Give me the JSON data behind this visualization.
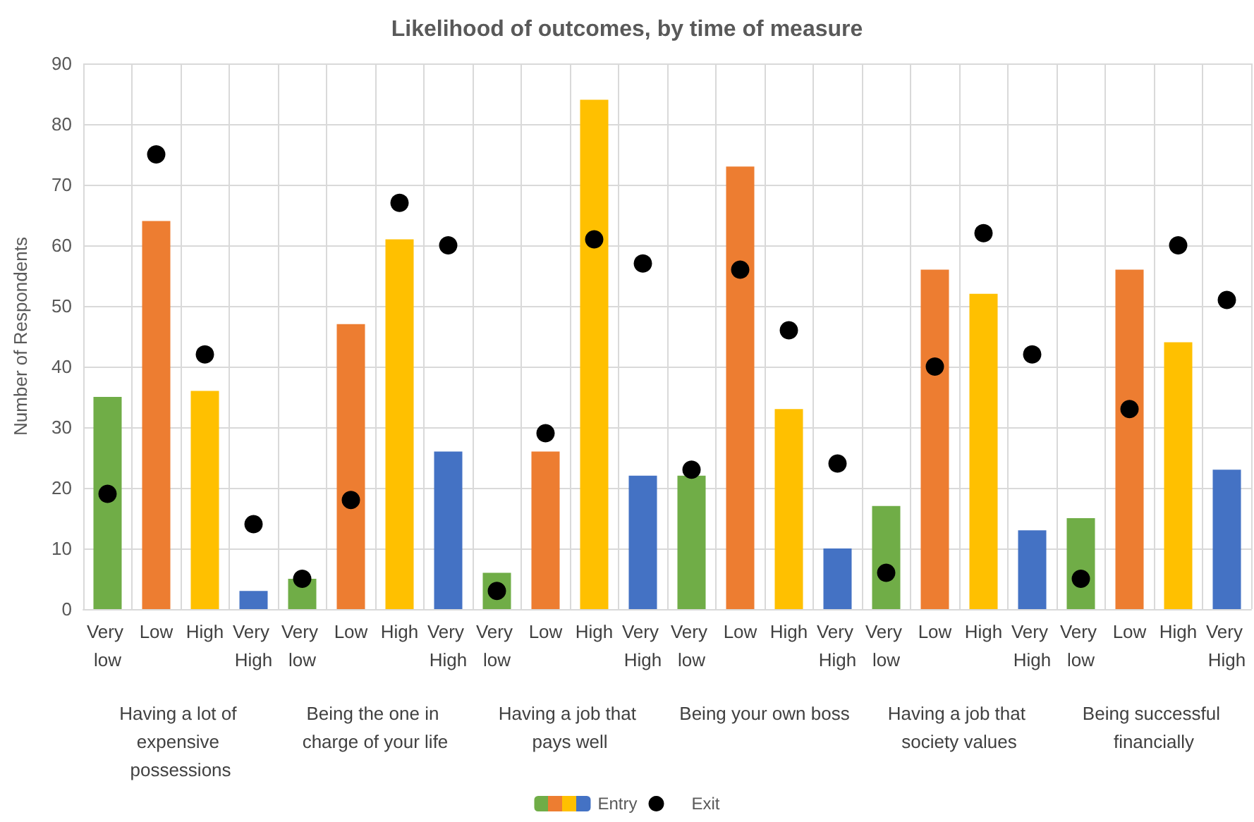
{
  "chart_data": {
    "type": "bar",
    "title": "Likelihood of outcomes, by time of measure",
    "ylabel": "Number of Respondents",
    "categories": [
      "Very low",
      "Low",
      "High",
      "Very High",
      "Very low",
      "Low",
      "High",
      "Very High",
      "Very low",
      "Low",
      "High",
      "Very High",
      "Very low",
      "Low",
      "High",
      "Very High",
      "Very low",
      "Low",
      "High",
      "Very High",
      "Very low",
      "Low",
      "High",
      "Very High"
    ],
    "annotations": [
      "Having a lot of expensive possessions",
      "Being the one in charge of your life",
      "Having a job that pays well",
      "Being your own boss",
      "Having a job that society values",
      "Being successful financially"
    ],
    "series": [
      {
        "name": "Entry",
        "values": [
          35,
          64,
          36,
          3,
          5,
          47,
          61,
          26,
          6,
          26,
          84,
          22,
          22,
          73,
          33,
          10,
          17,
          56,
          52,
          13,
          15,
          56,
          44,
          23
        ],
        "colors": [
          "#70ad47",
          "#ed7d31",
          "#ffc000",
          "#4472c4",
          "#70ad47",
          "#ed7d31",
          "#ffc000",
          "#4472c4",
          "#70ad47",
          "#ed7d31",
          "#ffc000",
          "#4472c4",
          "#70ad47",
          "#ed7d31",
          "#ffc000",
          "#4472c4",
          "#70ad47",
          "#ed7d31",
          "#ffc000",
          "#4472c4",
          "#70ad47",
          "#ed7d31",
          "#ffc000",
          "#4472c4"
        ]
      },
      {
        "name": "Exit",
        "type": "scatter",
        "color": "#000000",
        "marker": "circle",
        "values": [
          19,
          75,
          42,
          14,
          5,
          18,
          67,
          60,
          3,
          29,
          61,
          57,
          23,
          56,
          46,
          24,
          6,
          40,
          62,
          42,
          5,
          33,
          60,
          51
        ]
      }
    ],
    "ylim": [
      0,
      90
    ],
    "yticks": [
      0,
      10,
      20,
      30,
      40,
      50,
      60,
      70,
      80,
      90
    ],
    "grid": true,
    "legend": "bottom"
  }
}
